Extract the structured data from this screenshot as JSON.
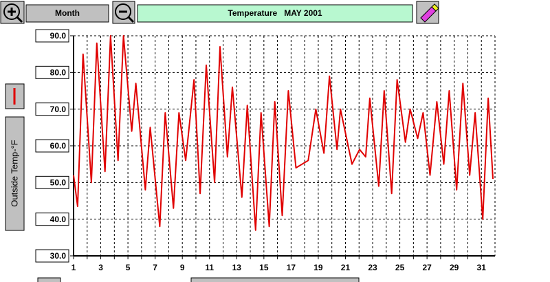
{
  "toolbar": {
    "period_button": "Month"
  },
  "chart_data": {
    "type": "line",
    "title": "Temperature   MAY 2001",
    "ylabel": "Outside Temp-°F",
    "series": [
      {
        "name": "Outside Temp-°F",
        "color": "#e00000",
        "x": [
          1.0,
          1.3,
          1.7,
          2.31,
          2.71,
          3.31,
          3.72,
          4.27,
          4.67,
          5.28,
          5.58,
          6.28,
          6.64,
          7.34,
          7.74,
          8.35,
          8.75,
          9.25,
          9.86,
          10.31,
          10.76,
          11.37,
          11.77,
          12.32,
          12.68,
          13.38,
          13.78,
          14.39,
          14.79,
          15.39,
          15.8,
          16.35,
          16.8,
          17.36,
          18.26,
          18.82,
          19.42,
          19.82,
          20.38,
          20.63,
          21.48,
          22.04,
          22.49,
          22.79,
          23.45,
          23.85,
          24.4,
          24.8,
          25.41,
          25.76,
          26.31,
          26.71,
          27.22,
          27.72,
          28.23,
          28.63,
          29.18,
          29.64,
          30.14,
          30.54,
          31.1,
          31.5,
          31.85
        ],
        "values": [
          52,
          43.5,
          85,
          50,
          88,
          53,
          90,
          56,
          90,
          64,
          77,
          48,
          65,
          38,
          69,
          43,
          69,
          56,
          78,
          47,
          82,
          50,
          87,
          57,
          76,
          46,
          71,
          37,
          69,
          38,
          72,
          41,
          75,
          54,
          56,
          70,
          58,
          79,
          59,
          70,
          55,
          59,
          57,
          73,
          49,
          75,
          47,
          78,
          61,
          70,
          62,
          69,
          52,
          72,
          55,
          75,
          48,
          77,
          52,
          69,
          40,
          73,
          51
        ]
      }
    ],
    "xlim": [
      1,
      32
    ],
    "xticks": [
      1,
      3,
      5,
      7,
      9,
      11,
      13,
      15,
      17,
      19,
      21,
      23,
      25,
      27,
      29,
      31
    ],
    "minor_xticks": [
      2,
      4,
      6,
      8,
      10,
      12,
      14,
      16,
      18,
      20,
      22,
      24,
      26,
      28,
      30
    ],
    "ylim": [
      30,
      90
    ],
    "yticks": [
      {
        "value": 30,
        "label": "30.0"
      },
      {
        "value": 40,
        "label": "40.0"
      },
      {
        "value": 50,
        "label": "50.0"
      },
      {
        "value": 60,
        "label": "60.0"
      },
      {
        "value": 70,
        "label": "70.0"
      },
      {
        "value": 80,
        "label": "80.0"
      },
      {
        "value": 90,
        "label": "90.0"
      }
    ],
    "grid": true
  }
}
